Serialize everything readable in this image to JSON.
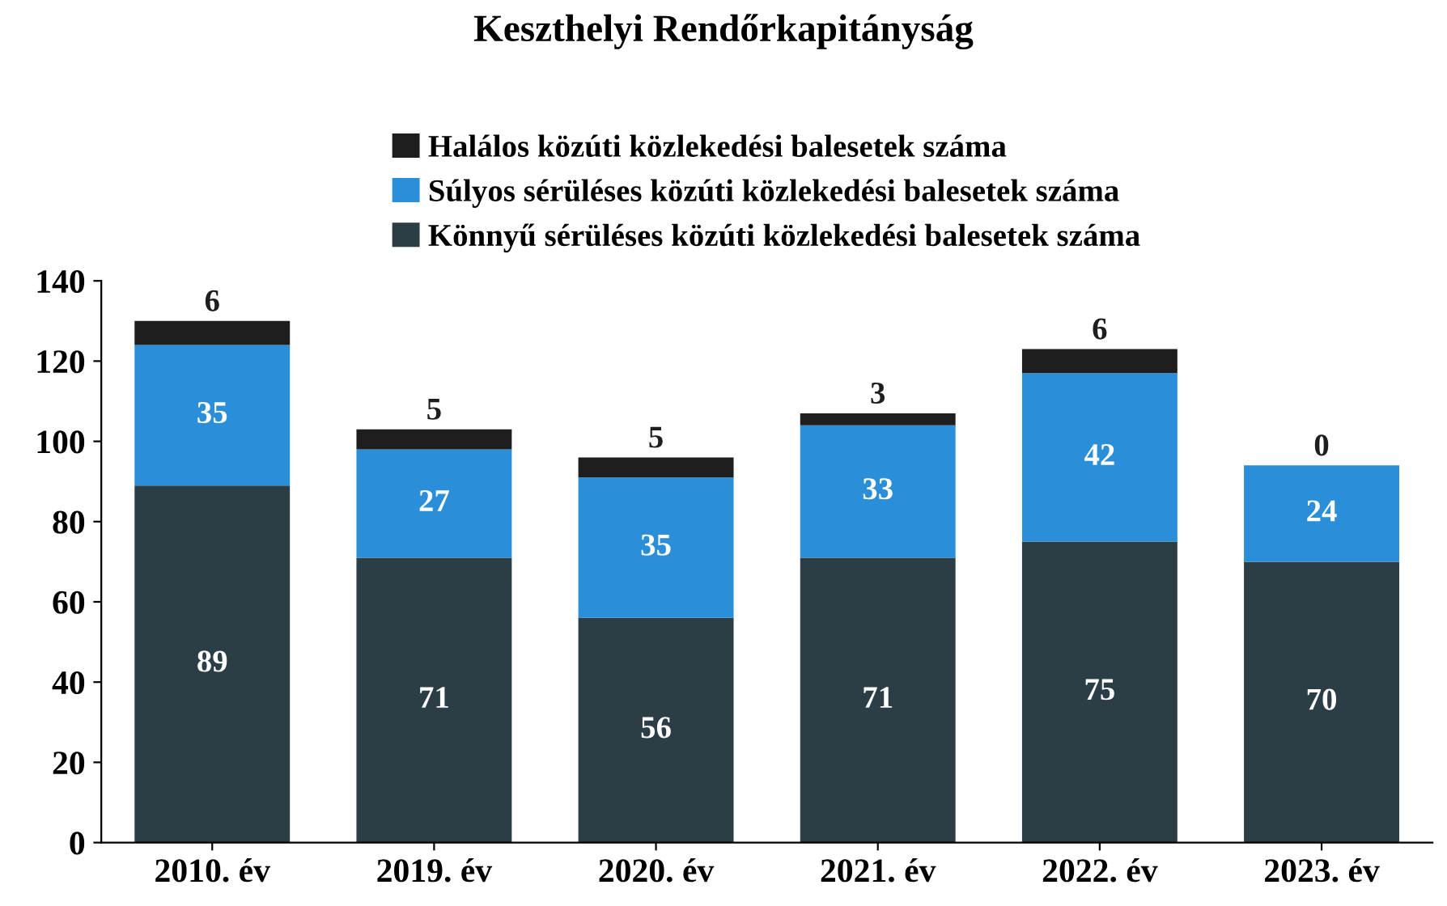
{
  "chart_data": {
    "type": "bar",
    "stacked": true,
    "title": "Keszthelyi Rendőrkapitányság",
    "categories": [
      "2010. év",
      "2019. év",
      "2020. év",
      "2021. év",
      "2022. év",
      "2023. év"
    ],
    "series": [
      {
        "name": "Könnyű sérüléses közúti közlekedési balesetek száma",
        "color": "#2b3e46",
        "values": [
          89,
          71,
          56,
          71,
          75,
          70
        ]
      },
      {
        "name": "Súlyos sérüléses közúti közlekedési balesetek száma",
        "color": "#2a8fd8",
        "values": [
          35,
          27,
          35,
          33,
          42,
          24
        ]
      },
      {
        "name": "Halálos közúti közlekedési balesetek száma",
        "color": "#1e1e1e",
        "values": [
          6,
          5,
          5,
          3,
          6,
          0
        ]
      }
    ],
    "ylim": [
      0,
      140
    ],
    "yticks": [
      0,
      20,
      40,
      60,
      80,
      100,
      120,
      140
    ],
    "grid": false,
    "legend": "top",
    "data_labels": true
  }
}
